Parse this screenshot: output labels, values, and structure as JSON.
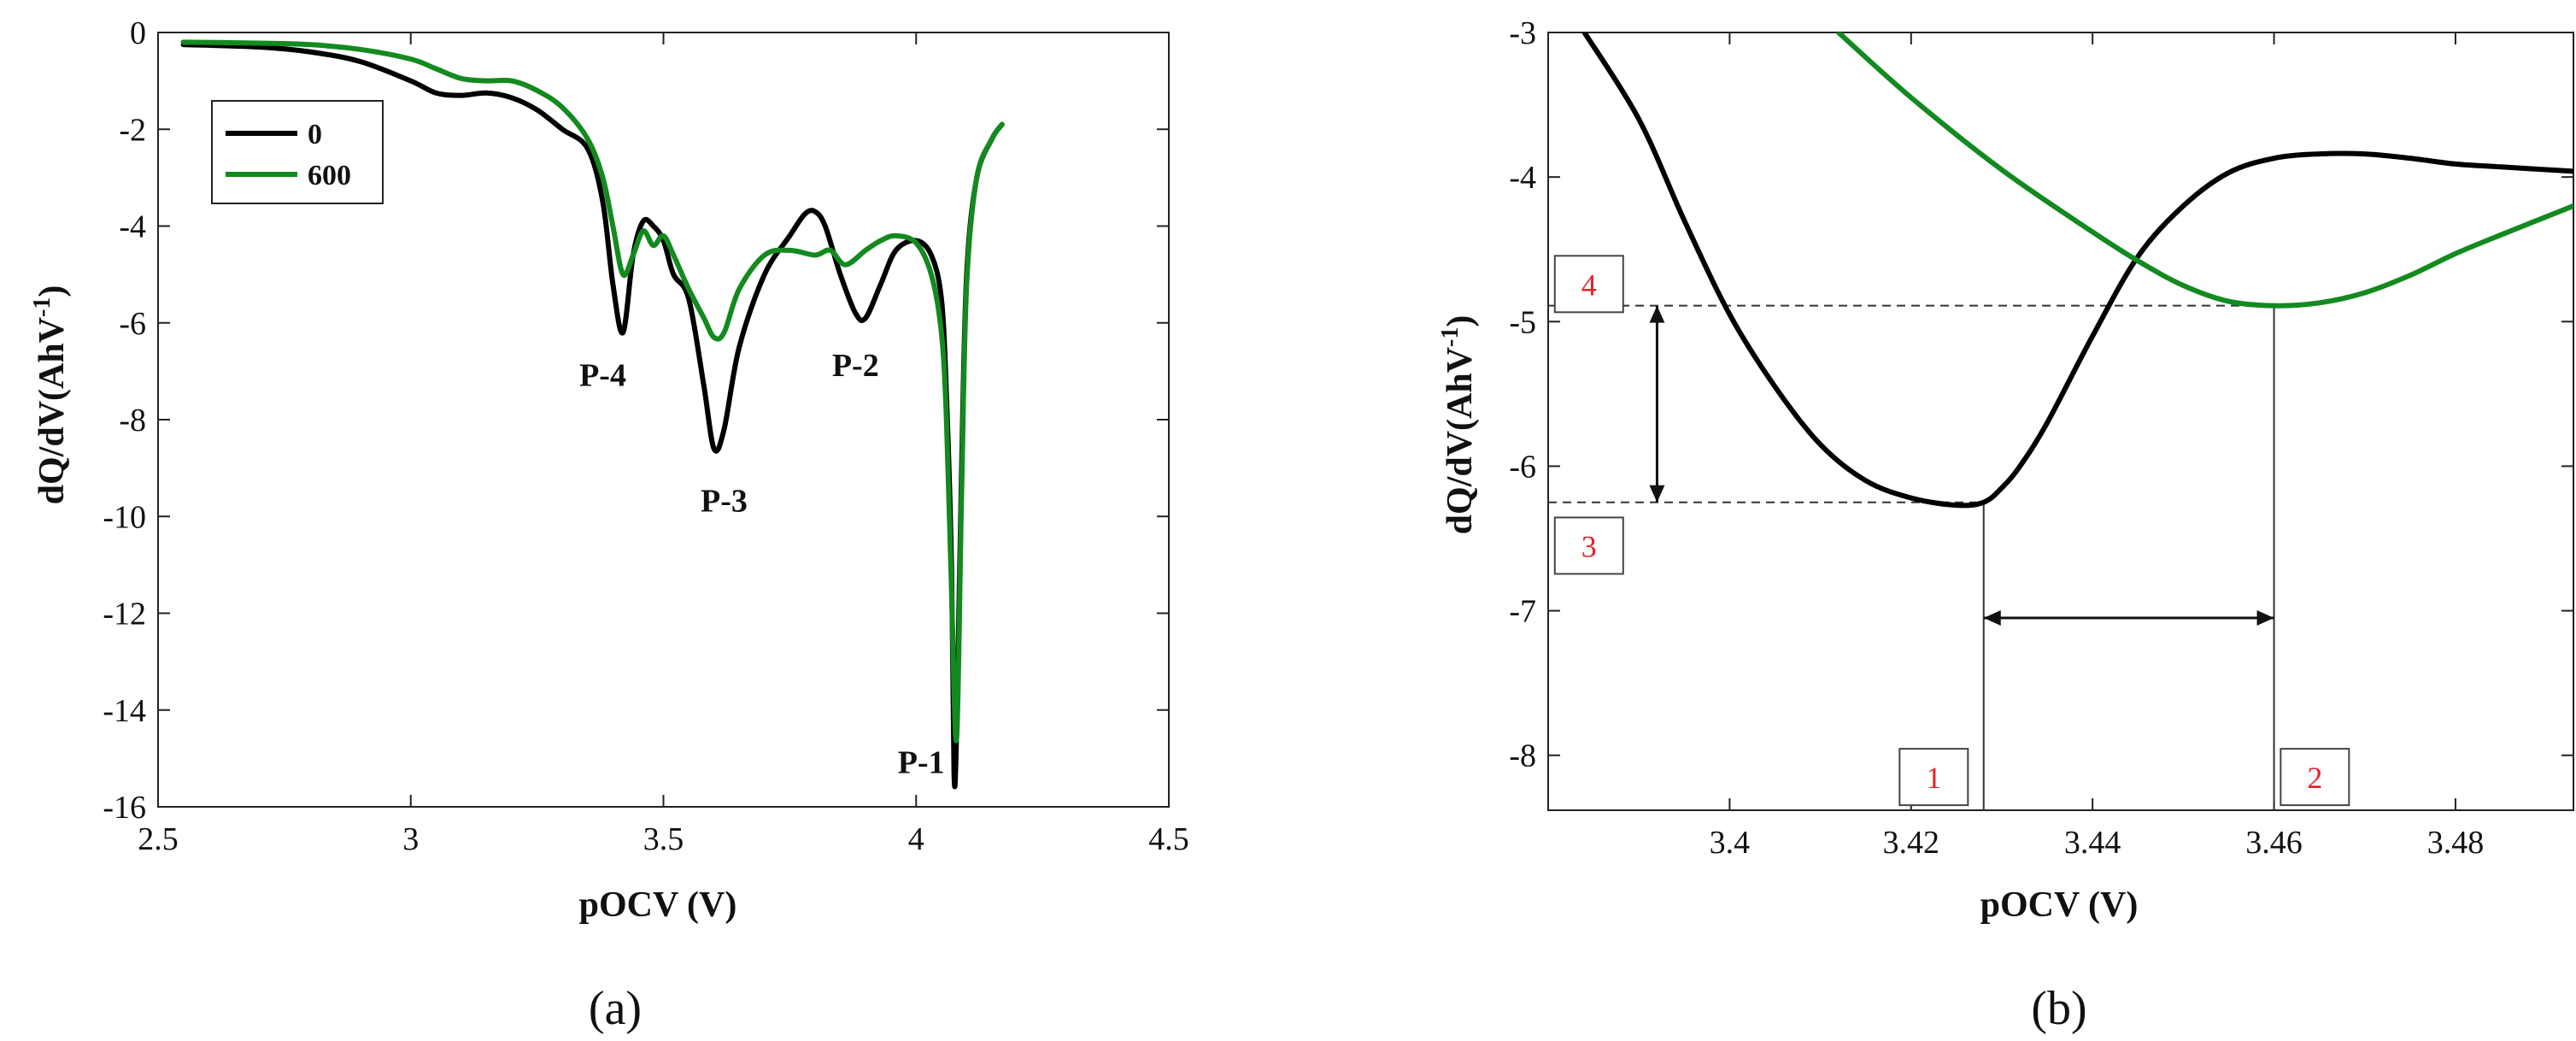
{
  "chart_data": [
    {
      "type": "line",
      "panel_label": "(a)",
      "xlabel": "pOCV (V)",
      "ylabel": "dQ/dV(AhV",
      "ylabel_sup": "-1",
      "ylabel_close": ")",
      "xlim": [
        2.5,
        4.5
      ],
      "ylim": [
        -16,
        0
      ],
      "xticks": [
        2.5,
        3,
        3.5,
        4,
        4.5
      ],
      "xtick_labels": [
        "2.5",
        "3",
        "3.5",
        "4",
        "4.5"
      ],
      "yticks": [
        0,
        -2,
        -4,
        -6,
        -8,
        -10,
        -12,
        -14,
        -16
      ],
      "ytick_labels": [
        "0",
        "-2",
        "-4",
        "-6",
        "-8",
        "-10",
        "-12",
        "-14",
        "-16"
      ],
      "legend": {
        "placement": "top-left",
        "entries": [
          "0",
          "600"
        ]
      },
      "series": [
        {
          "name": "0",
          "color": "#000000",
          "x": [
            2.55,
            2.7,
            2.8,
            2.9,
            3.0,
            3.05,
            3.1,
            3.15,
            3.2,
            3.25,
            3.3,
            3.35,
            3.38,
            3.4,
            3.42,
            3.44,
            3.46,
            3.48,
            3.5,
            3.52,
            3.55,
            3.58,
            3.6,
            3.62,
            3.65,
            3.7,
            3.75,
            3.78,
            3.8,
            3.82,
            3.85,
            3.88,
            3.9,
            3.93,
            3.96,
            4.0,
            4.03,
            4.05,
            4.06,
            4.07,
            4.075,
            4.08,
            4.09,
            4.1,
            4.12,
            4.15,
            4.17
          ],
          "y": [
            -0.25,
            -0.3,
            -0.4,
            -0.6,
            -1.0,
            -1.25,
            -1.3,
            -1.25,
            -1.35,
            -1.6,
            -2.0,
            -2.4,
            -3.5,
            -5.2,
            -6.2,
            -4.6,
            -3.9,
            -4.0,
            -4.3,
            -5.0,
            -5.5,
            -7.3,
            -8.6,
            -8.2,
            -6.5,
            -5.0,
            -4.2,
            -3.75,
            -3.7,
            -4.0,
            -5.0,
            -5.8,
            -5.9,
            -5.2,
            -4.5,
            -4.3,
            -4.6,
            -5.5,
            -7.5,
            -11.0,
            -15.3,
            -14.5,
            -9.0,
            -5.0,
            -3.0,
            -2.2,
            -1.9
          ]
        },
        {
          "name": "600",
          "color": "#138a1f",
          "x": [
            2.55,
            2.7,
            2.8,
            2.9,
            3.0,
            3.05,
            3.1,
            3.15,
            3.2,
            3.25,
            3.3,
            3.35,
            3.38,
            3.4,
            3.42,
            3.44,
            3.46,
            3.48,
            3.5,
            3.52,
            3.55,
            3.58,
            3.6,
            3.62,
            3.65,
            3.7,
            3.75,
            3.8,
            3.83,
            3.86,
            3.9,
            3.93,
            3.96,
            4.0,
            4.03,
            4.05,
            4.06,
            4.07,
            4.08,
            4.09,
            4.1,
            4.12,
            4.15,
            4.17
          ],
          "y": [
            -0.2,
            -0.22,
            -0.25,
            -0.35,
            -0.55,
            -0.75,
            -0.95,
            -1.0,
            -1.0,
            -1.2,
            -1.55,
            -2.2,
            -3.0,
            -4.0,
            -5.0,
            -4.6,
            -4.1,
            -4.4,
            -4.2,
            -4.6,
            -5.3,
            -5.9,
            -6.3,
            -6.2,
            -5.3,
            -4.6,
            -4.5,
            -4.6,
            -4.5,
            -4.8,
            -4.5,
            -4.3,
            -4.2,
            -4.35,
            -5.0,
            -6.2,
            -8.0,
            -11.5,
            -14.6,
            -9.5,
            -5.2,
            -3.0,
            -2.2,
            -1.9
          ]
        }
      ],
      "annotations": [
        {
          "text": "P-4",
          "x": 3.38,
          "y": -7.3
        },
        {
          "text": "P-3",
          "x": 3.62,
          "y": -9.9
        },
        {
          "text": "P-2",
          "x": 3.88,
          "y": -7.1
        },
        {
          "text": "P-1",
          "x": 4.01,
          "y": -15.3
        }
      ]
    },
    {
      "type": "line",
      "panel_label": "(b)",
      "xlabel": "pOCV (V)",
      "ylabel": "dQ/dV(AhV",
      "ylabel_sup": "-1",
      "ylabel_close": ")",
      "xlim": [
        3.38,
        3.493
      ],
      "ylim": [
        -8.38,
        -3
      ],
      "xticks": [
        3.4,
        3.42,
        3.44,
        3.46,
        3.48
      ],
      "xtick_labels": [
        "3.4",
        "3.42",
        "3.44",
        "3.46",
        "3.48"
      ],
      "yticks": [
        -3,
        -4,
        -5,
        -6,
        -7,
        -8
      ],
      "ytick_labels": [
        "-3",
        "-4",
        "-5",
        "-6",
        "-7",
        "-8"
      ],
      "series": [
        {
          "name": "0",
          "color": "#000000",
          "x": [
            3.384,
            3.39,
            3.395,
            3.4,
            3.405,
            3.41,
            3.415,
            3.42,
            3.425,
            3.428,
            3.43,
            3.432,
            3.435,
            3.44,
            3.445,
            3.45,
            3.455,
            3.46,
            3.465,
            3.47,
            3.475,
            3.48,
            3.485,
            3.493
          ],
          "y": [
            -3.0,
            -3.6,
            -4.3,
            -4.95,
            -5.45,
            -5.85,
            -6.1,
            -6.22,
            -6.27,
            -6.25,
            -6.15,
            -6.0,
            -5.7,
            -5.1,
            -4.55,
            -4.2,
            -3.97,
            -3.87,
            -3.84,
            -3.84,
            -3.87,
            -3.91,
            -3.93,
            -3.96
          ]
        },
        {
          "name": "600",
          "color": "#138a1f",
          "x": [
            3.412,
            3.42,
            3.43,
            3.44,
            3.445,
            3.45,
            3.455,
            3.46,
            3.465,
            3.47,
            3.475,
            3.48,
            3.485,
            3.493
          ],
          "y": [
            -3.0,
            -3.45,
            -3.95,
            -4.38,
            -4.58,
            -4.75,
            -4.86,
            -4.89,
            -4.87,
            -4.8,
            -4.68,
            -4.53,
            -4.4,
            -4.2
          ]
        }
      ],
      "reference_lines": [
        {
          "kind": "horizontal",
          "y": -4.89,
          "x_from": 3.38,
          "x_to": 3.46,
          "style": "dashed"
        },
        {
          "kind": "horizontal",
          "y": -6.25,
          "x_from": 3.38,
          "x_to": 3.428,
          "style": "dashed"
        },
        {
          "kind": "vertical",
          "x": 3.428,
          "y_from": -8.38,
          "y_to": -6.25,
          "style": "solid"
        },
        {
          "kind": "vertical",
          "x": 3.46,
          "y_from": -8.38,
          "y_to": -4.89,
          "style": "solid"
        }
      ],
      "arrows": [
        {
          "orientation": "horizontal",
          "from": [
            3.428,
            -7.05
          ],
          "to": [
            3.46,
            -7.05
          ]
        },
        {
          "orientation": "vertical",
          "from": [
            3.392,
            -4.89
          ],
          "to": [
            3.392,
            -6.25
          ]
        }
      ],
      "boxed_labels": [
        {
          "text": "1",
          "x": 3.4225,
          "y": -8.15
        },
        {
          "text": "2",
          "x": 3.4645,
          "y": -8.15
        },
        {
          "text": "3",
          "x": 3.3845,
          "y": -6.55
        },
        {
          "text": "4",
          "x": 3.3845,
          "y": -4.74
        }
      ]
    }
  ]
}
